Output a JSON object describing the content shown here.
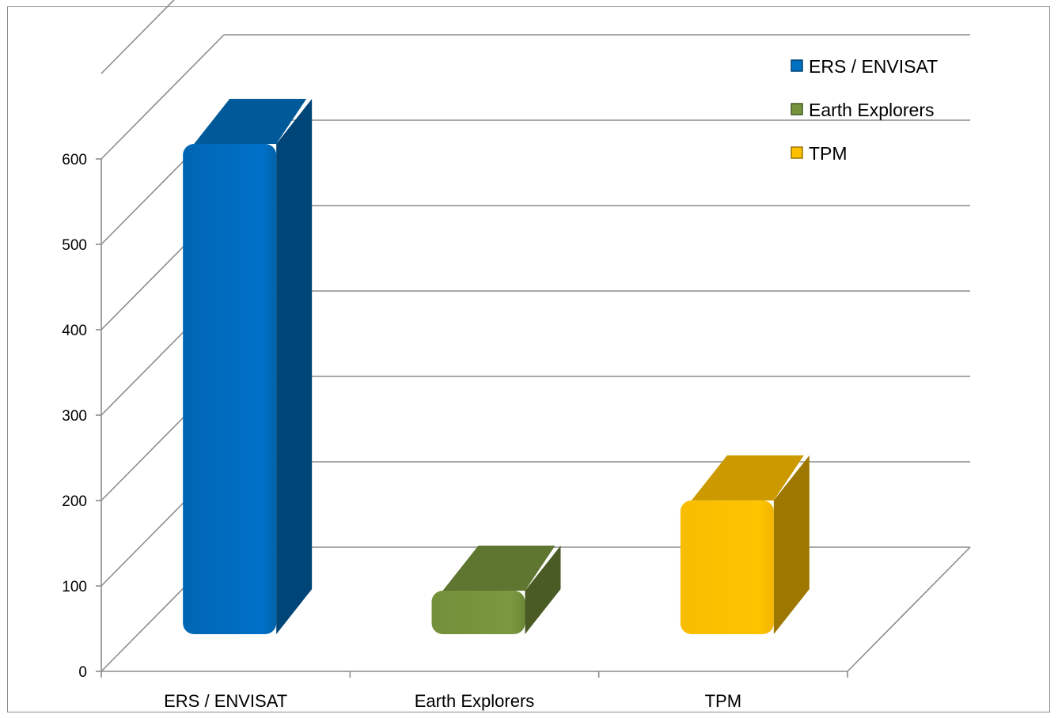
{
  "chart_data": {
    "type": "bar",
    "style": "3d-column",
    "categories": [
      "ERS / ENVISAT",
      "Earth Explorers",
      "TPM"
    ],
    "series": [
      {
        "name": "ERS / ENVISAT",
        "values": [
          600,
          null,
          null
        ],
        "color": "#0070C0"
      },
      {
        "name": "Earth Explorers",
        "values": [
          null,
          70,
          null
        ],
        "color": "#77933C"
      },
      {
        "name": "TPM",
        "values": [
          null,
          null,
          200
        ],
        "color": "#FFC000"
      }
    ],
    "y_ticks": [
      "0",
      "100",
      "200",
      "300",
      "400",
      "500",
      "600"
    ],
    "ylim": [
      0,
      600
    ],
    "grid": true,
    "legend": {
      "position": "top-right",
      "entries": [
        "ERS / ENVISAT",
        "Earth Explorers",
        "TPM"
      ]
    }
  }
}
